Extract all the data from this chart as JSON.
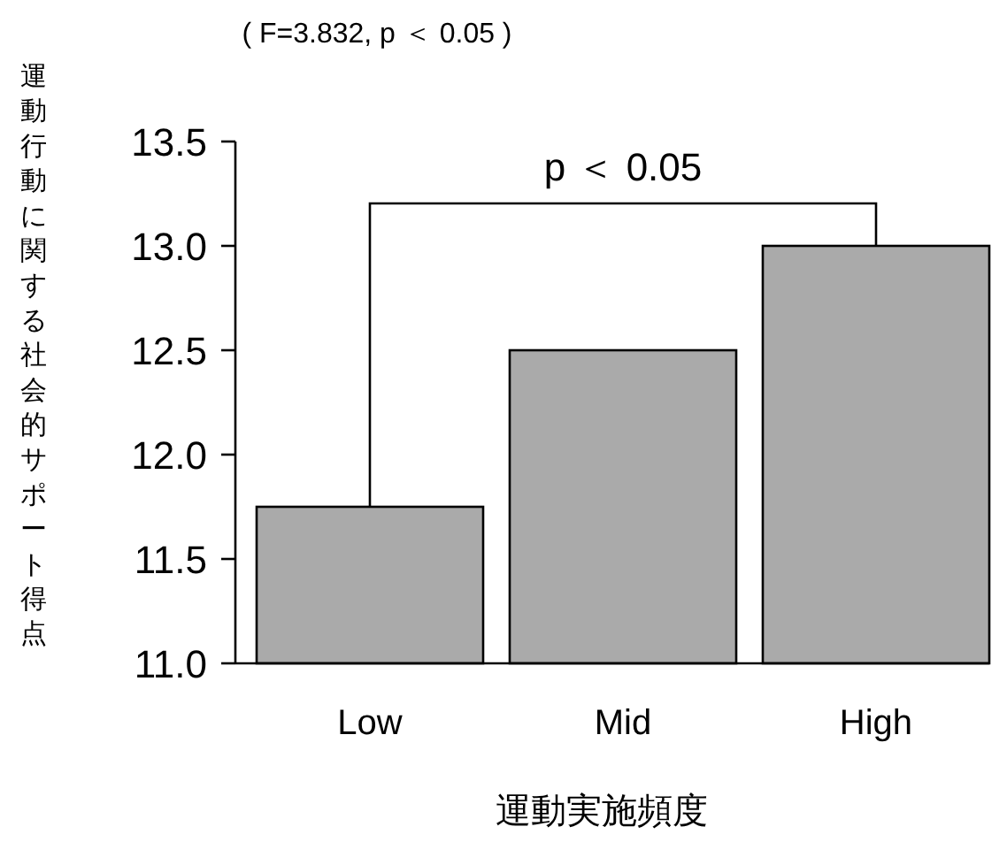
{
  "chart_data": {
    "type": "bar",
    "title": "( F=3.832, p ＜ 0.05 )",
    "xlabel": "運動実施頻度",
    "ylabel": "運動行動に関する社会的サポート得点",
    "categories": [
      "Low",
      "Mid",
      "High"
    ],
    "values": [
      11.75,
      12.5,
      13.0
    ],
    "color": "#aaaaaa",
    "ylim": [
      11.0,
      13.5
    ],
    "yticks": [
      {
        "value": 11.0,
        "label": "11.0"
      },
      {
        "value": 11.5,
        "label": "11.5"
      },
      {
        "value": 12.0,
        "label": "12.0"
      },
      {
        "value": 12.5,
        "label": "12.5"
      },
      {
        "value": 13.0,
        "label": "13.0"
      },
      {
        "value": 13.5,
        "label": "13.5"
      }
    ],
    "grid": false,
    "annotations": [
      "p ＜ 0.05"
    ]
  }
}
